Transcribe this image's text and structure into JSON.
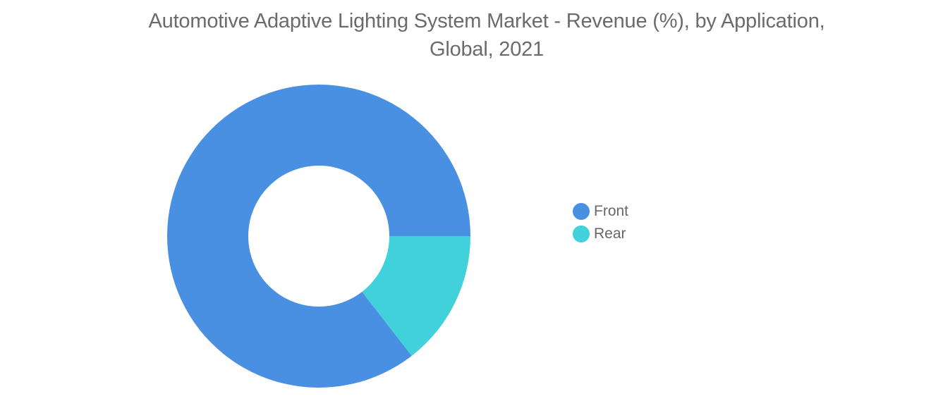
{
  "chart_data": {
    "type": "pie",
    "variant": "donut",
    "title_line1": "Automotive Adaptive Lighting System Market - Revenue (%), by Application,",
    "title_line2": "Global, 2021",
    "categories": [
      "Front",
      "Rear"
    ],
    "values": [
      85.5,
      14.5
    ],
    "colors": [
      "#4a90e2",
      "#41d1da"
    ],
    "legend_placement": "right",
    "grid": false
  }
}
